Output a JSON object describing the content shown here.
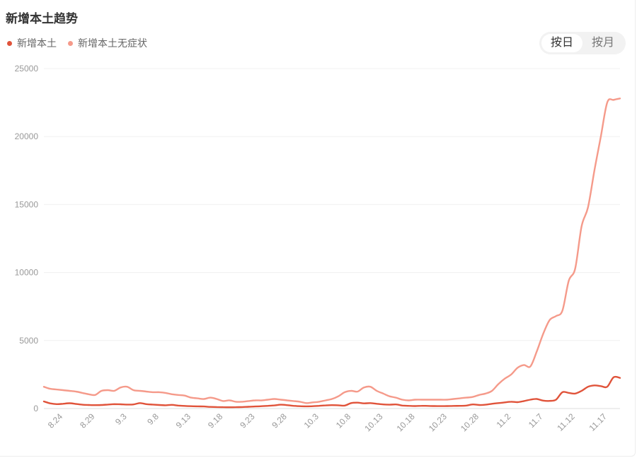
{
  "title": "新增本土趋势",
  "legend": [
    {
      "label": "新增本土",
      "color": "#e0533a"
    },
    {
      "label": "新增本土无症状",
      "color": "#f59a8a"
    }
  ],
  "toggle": {
    "day_label": "按日",
    "month_label": "按月",
    "active": "day"
  },
  "chart_data": {
    "type": "line",
    "title": "",
    "xlabel": "",
    "ylabel": "",
    "ylim": [
      0,
      25000
    ],
    "yticks": [
      0,
      5000,
      10000,
      15000,
      20000,
      25000
    ],
    "x_tick_labels": [
      "8.24",
      "8.29",
      "9.3",
      "9.8",
      "9.13",
      "9.18",
      "9.23",
      "9.28",
      "10.3",
      "10.8",
      "10.13",
      "10.18",
      "10.23",
      "10.28",
      "11.2",
      "11.7",
      "11.12",
      "11.17"
    ],
    "x_tick_index": [
      3,
      8,
      13,
      18,
      23,
      28,
      33,
      38,
      43,
      48,
      53,
      58,
      63,
      68,
      73,
      78,
      83,
      88
    ],
    "grid": true,
    "legend_position": "top-left",
    "series": [
      {
        "name": "新增本土",
        "color": "#e0533a",
        "values": [
          520,
          380,
          320,
          350,
          390,
          340,
          280,
          260,
          250,
          260,
          290,
          320,
          310,
          290,
          300,
          400,
          320,
          290,
          260,
          240,
          270,
          220,
          190,
          170,
          160,
          150,
          120,
          110,
          100,
          95,
          100,
          110,
          130,
          150,
          170,
          200,
          230,
          280,
          250,
          200,
          170,
          160,
          170,
          200,
          230,
          250,
          240,
          220,
          400,
          430,
          380,
          400,
          350,
          300,
          280,
          300,
          220,
          200,
          180,
          200,
          190,
          180,
          175,
          180,
          190,
          200,
          220,
          300,
          260,
          280,
          350,
          400,
          450,
          500,
          470,
          550,
          650,
          700,
          580,
          560,
          650,
          1200,
          1150,
          1100,
          1300,
          1600,
          1700,
          1650,
          1600,
          2300,
          2250
        ]
      },
      {
        "name": "新增本土无症状",
        "color": "#f59a8a",
        "values": [
          1600,
          1450,
          1400,
          1350,
          1300,
          1250,
          1150,
          1050,
          1000,
          1300,
          1350,
          1300,
          1550,
          1600,
          1350,
          1300,
          1250,
          1200,
          1200,
          1150,
          1050,
          1000,
          950,
          800,
          750,
          700,
          800,
          700,
          550,
          600,
          500,
          500,
          550,
          600,
          600,
          650,
          700,
          650,
          600,
          550,
          500,
          400,
          450,
          500,
          600,
          700,
          900,
          1200,
          1300,
          1250,
          1550,
          1600,
          1300,
          1100,
          900,
          800,
          650,
          600,
          650,
          650,
          650,
          650,
          650,
          650,
          700,
          750,
          800,
          850,
          1000,
          1100,
          1300,
          1800,
          2200,
          2500,
          3000,
          3200,
          3100,
          4200,
          5500,
          6500,
          6800,
          7200,
          9400,
          10300,
          13400,
          14800,
          17500,
          20000,
          22500,
          22700,
          22800
        ]
      }
    ]
  }
}
